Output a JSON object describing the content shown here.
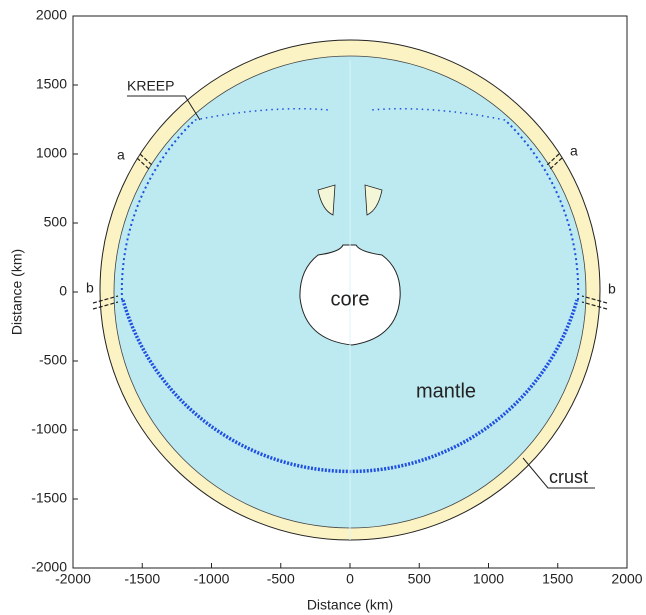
{
  "chart_data": {
    "type": "section",
    "xlabel": "Distance (km)",
    "ylabel": "Distance (km)",
    "xlim": [
      -2000,
      2000
    ],
    "ylim": [
      -2000,
      2000
    ],
    "xticks": [
      -2000,
      -1500,
      -1000,
      -500,
      0,
      500,
      1000,
      1500,
      2000
    ],
    "yticks": [
      -2000,
      -1500,
      -1000,
      -500,
      0,
      500,
      1000,
      1500,
      2000
    ],
    "annotations": [
      "KREEP",
      "a",
      "a",
      "b",
      "b",
      "core",
      "mantle",
      "crust"
    ]
  }
}
